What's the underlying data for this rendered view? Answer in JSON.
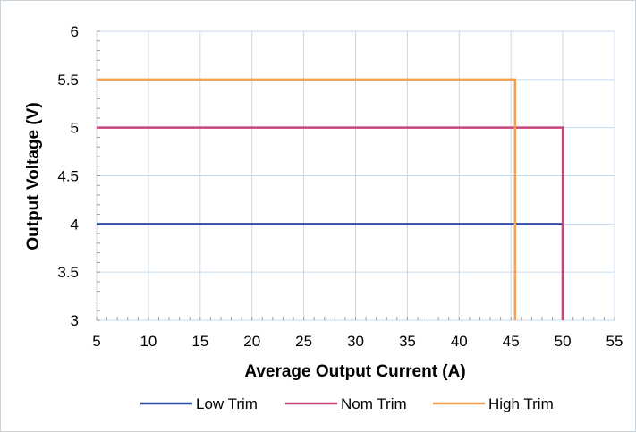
{
  "chart_data": {
    "type": "line",
    "title": "",
    "xlabel": "Average Output Current (A)",
    "ylabel": "Output Voltage (V)",
    "xlim": [
      5,
      55
    ],
    "ylim": [
      3,
      6
    ],
    "xticks": [
      "5",
      "10",
      "15",
      "20",
      "25",
      "30",
      "35",
      "40",
      "45",
      "50",
      "55"
    ],
    "yticks": [
      "3",
      "3.5",
      "4",
      "4.5",
      "5",
      "5.5",
      "6"
    ],
    "grid": true,
    "legend_position": "bottom",
    "series": [
      {
        "name": "Low Trim",
        "color": "#2e4d9e",
        "x": [
          5,
          50,
          50
        ],
        "y": [
          4,
          4,
          3
        ]
      },
      {
        "name": "Nom Trim",
        "color": "#c8457a",
        "x": [
          5,
          50,
          50
        ],
        "y": [
          5,
          5,
          3
        ]
      },
      {
        "name": "High Trim",
        "color": "#f7a050",
        "x": [
          5,
          45.4,
          45.4
        ],
        "y": [
          5.5,
          5.5,
          3
        ]
      }
    ]
  }
}
